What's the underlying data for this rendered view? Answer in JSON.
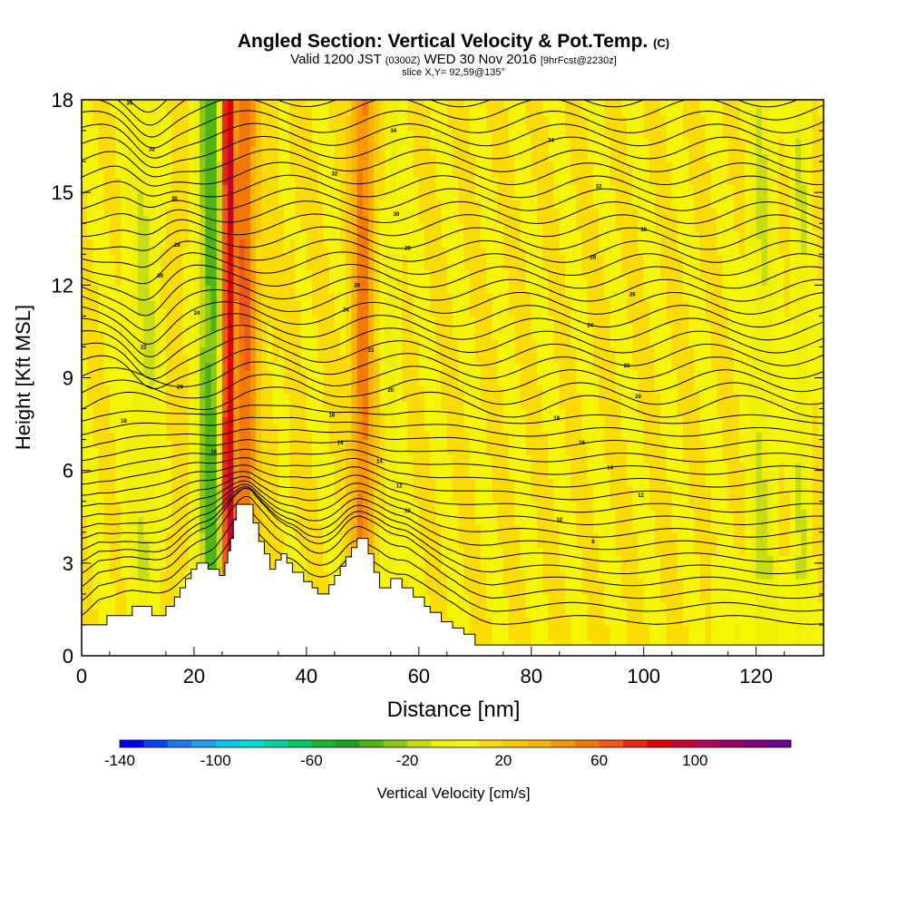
{
  "title": {
    "main": "Angled Section: Vertical Velocity & Pot.Temp.",
    "main_units": "(C)",
    "valid_prefix": "Valid 1200 JST",
    "valid_utc": "(0300Z)",
    "valid_date": "WED 30 Nov 2016",
    "forecast": "[9hrFcst@2230z]",
    "slice": "slice X,Y= 92,59@135°"
  },
  "chart_data": {
    "type": "heatmap",
    "xlabel": "Distance [nm]",
    "ylabel": "Height [Kft MSL]",
    "xlim": [
      0,
      132
    ],
    "ylim": [
      0,
      18
    ],
    "x_ticks": [
      0,
      20,
      40,
      60,
      80,
      100,
      120
    ],
    "y_ticks": [
      0,
      3,
      6,
      9,
      12,
      15,
      18
    ],
    "colorbar": {
      "label": "Vertical Velocity [cm/s]",
      "min": -140,
      "max": 140,
      "step": 10,
      "tick_labels": [
        -140,
        -100,
        -60,
        -20,
        20,
        60,
        100
      ],
      "colors": [
        "#0000ff",
        "#0a46f5",
        "#1e78f0",
        "#1ea0f0",
        "#00c8f0",
        "#00dcd2",
        "#00d2a0",
        "#00c864",
        "#14b432",
        "#1ea01e",
        "#50b414",
        "#8cc814",
        "#c8dc14",
        "#f0f000",
        "#f5f500",
        "#fadc00",
        "#fac800",
        "#fab400",
        "#fa9600",
        "#f57800",
        "#f05a14",
        "#e62814",
        "#e10000",
        "#c80032",
        "#b4005a",
        "#960064",
        "#820078",
        "#6e0091"
      ]
    },
    "upward_motion_bands": [
      {
        "x_center": 29,
        "half_width": 2.2,
        "w": 50
      },
      {
        "x_center": 50,
        "half_width": 2.0,
        "w": 45
      },
      {
        "x_center": 26,
        "half_width": 1.0,
        "w": 90
      },
      {
        "x_center": 36,
        "half_width": 2.0,
        "w": 20
      },
      {
        "x_center": 15,
        "half_width": 3.5,
        "w": 12
      }
    ],
    "downward_motion_bands": [
      {
        "x_center": 23,
        "half_width": 2.5,
        "w": -45
      },
      {
        "x_center": 12,
        "half_width": 3.5,
        "w": -25
      },
      {
        "x_center": 36,
        "half_width": 1.5,
        "w": -22
      },
      {
        "x_center": 55,
        "half_width": 1.3,
        "w": -15
      },
      {
        "x_center": 121,
        "half_width": 2.2,
        "w": -20
      },
      {
        "x_center": 128,
        "half_width": 1.2,
        "w": -20
      }
    ],
    "isentrope_labels": [
      {
        "x": 8.5,
        "y": 17.9,
        "label": "34"
      },
      {
        "x": 55.5,
        "y": 17.0,
        "label": "34"
      },
      {
        "x": 83.5,
        "y": 16.7,
        "label": "34"
      },
      {
        "x": 12.5,
        "y": 16.4,
        "label": "32"
      },
      {
        "x": 45,
        "y": 15.6,
        "label": "32"
      },
      {
        "x": 92,
        "y": 15.2,
        "label": "32"
      },
      {
        "x": 16.5,
        "y": 14.8,
        "label": "30"
      },
      {
        "x": 56,
        "y": 14.3,
        "label": "30"
      },
      {
        "x": 100,
        "y": 13.8,
        "label": "30"
      },
      {
        "x": 17,
        "y": 13.3,
        "label": "28"
      },
      {
        "x": 58,
        "y": 13.2,
        "label": "28"
      },
      {
        "x": 91,
        "y": 12.9,
        "label": "28"
      },
      {
        "x": 14,
        "y": 12.3,
        "label": "26"
      },
      {
        "x": 49,
        "y": 12.0,
        "label": "26"
      },
      {
        "x": 98,
        "y": 11.7,
        "label": "26"
      },
      {
        "x": 20.5,
        "y": 11.1,
        "label": "24"
      },
      {
        "x": 47,
        "y": 11.2,
        "label": "24"
      },
      {
        "x": 90.5,
        "y": 10.7,
        "label": "24"
      },
      {
        "x": 11,
        "y": 10.0,
        "label": "22"
      },
      {
        "x": 51.5,
        "y": 9.9,
        "label": "22"
      },
      {
        "x": 97,
        "y": 9.4,
        "label": "22"
      },
      {
        "x": 17.5,
        "y": 8.7,
        "label": "20"
      },
      {
        "x": 55,
        "y": 8.6,
        "label": "20"
      },
      {
        "x": 99,
        "y": 8.4,
        "label": "20"
      },
      {
        "x": 7.5,
        "y": 7.6,
        "label": "18"
      },
      {
        "x": 44.5,
        "y": 7.8,
        "label": "18"
      },
      {
        "x": 84.5,
        "y": 7.7,
        "label": "18"
      },
      {
        "x": 23.5,
        "y": 6.6,
        "label": "16"
      },
      {
        "x": 46,
        "y": 6.9,
        "label": "16"
      },
      {
        "x": 89,
        "y": 6.9,
        "label": "16"
      },
      {
        "x": 53,
        "y": 6.3,
        "label": "14"
      },
      {
        "x": 94,
        "y": 6.1,
        "label": "14"
      },
      {
        "x": 56.5,
        "y": 5.5,
        "label": "12"
      },
      {
        "x": 99.5,
        "y": 5.2,
        "label": "12"
      },
      {
        "x": 58,
        "y": 4.7,
        "label": "10"
      },
      {
        "x": 85,
        "y": 4.4,
        "label": "10"
      },
      {
        "x": 91,
        "y": 3.7,
        "label": "8"
      }
    ],
    "terrain_profile": [
      [
        0,
        1.0
      ],
      [
        4.5,
        1.0
      ],
      [
        4.5,
        1.3
      ],
      [
        9,
        1.3
      ],
      [
        9,
        1.6
      ],
      [
        12.5,
        1.6
      ],
      [
        12.5,
        1.3
      ],
      [
        15,
        1.3
      ],
      [
        15,
        1.6
      ],
      [
        16.5,
        1.6
      ],
      [
        16.5,
        1.9
      ],
      [
        17.5,
        1.9
      ],
      [
        17.5,
        2.2
      ],
      [
        18.5,
        2.2
      ],
      [
        18.5,
        2.5
      ],
      [
        19.5,
        2.5
      ],
      [
        19.5,
        2.8
      ],
      [
        20.5,
        2.8
      ],
      [
        20.5,
        3.0
      ],
      [
        22.5,
        3.0
      ],
      [
        22.5,
        2.8
      ],
      [
        24.5,
        2.8
      ],
      [
        24.5,
        2.6
      ],
      [
        25.5,
        2.6
      ],
      [
        25.5,
        3.0
      ],
      [
        26,
        3.0
      ],
      [
        26,
        3.4
      ],
      [
        26.5,
        3.4
      ],
      [
        26.5,
        3.8
      ],
      [
        27,
        3.8
      ],
      [
        27,
        4.4
      ],
      [
        27.5,
        4.4
      ],
      [
        27.5,
        4.9
      ],
      [
        30.5,
        4.9
      ],
      [
        30.5,
        4.3
      ],
      [
        31.5,
        4.3
      ],
      [
        31.5,
        3.7
      ],
      [
        32.5,
        3.7
      ],
      [
        32.5,
        3.3
      ],
      [
        33.5,
        3.3
      ],
      [
        33.5,
        2.8
      ],
      [
        34.5,
        2.8
      ],
      [
        34.5,
        3.1
      ],
      [
        35.5,
        3.1
      ],
      [
        35.5,
        3.3
      ],
      [
        36.5,
        3.3
      ],
      [
        36.5,
        3.0
      ],
      [
        37.5,
        3.0
      ],
      [
        37.5,
        2.7
      ],
      [
        39.5,
        2.7
      ],
      [
        39.5,
        2.4
      ],
      [
        41,
        2.4
      ],
      [
        41,
        2.2
      ],
      [
        42,
        2.2
      ],
      [
        42,
        2.0
      ],
      [
        44,
        2.0
      ],
      [
        44,
        2.3
      ],
      [
        45,
        2.3
      ],
      [
        45,
        2.6
      ],
      [
        46,
        2.6
      ],
      [
        46,
        2.9
      ],
      [
        47,
        2.9
      ],
      [
        47,
        3.2
      ],
      [
        48,
        3.2
      ],
      [
        48,
        3.5
      ],
      [
        49,
        3.5
      ],
      [
        49,
        3.8
      ],
      [
        51,
        3.8
      ],
      [
        51,
        3.3
      ],
      [
        52,
        3.3
      ],
      [
        52,
        2.7
      ],
      [
        53,
        2.7
      ],
      [
        53,
        2.2
      ],
      [
        55,
        2.2
      ],
      [
        55,
        2.5
      ],
      [
        57,
        2.5
      ],
      [
        57,
        2.2
      ],
      [
        59,
        2.2
      ],
      [
        59,
        1.9
      ],
      [
        61,
        1.9
      ],
      [
        61,
        1.6
      ],
      [
        62,
        1.6
      ],
      [
        62,
        1.4
      ],
      [
        64,
        1.4
      ],
      [
        64,
        1.1
      ],
      [
        66,
        1.1
      ],
      [
        66,
        0.9
      ],
      [
        68,
        0.9
      ],
      [
        68,
        0.7
      ],
      [
        70,
        0.7
      ],
      [
        70,
        0.35
      ],
      [
        132,
        0.35
      ]
    ]
  }
}
